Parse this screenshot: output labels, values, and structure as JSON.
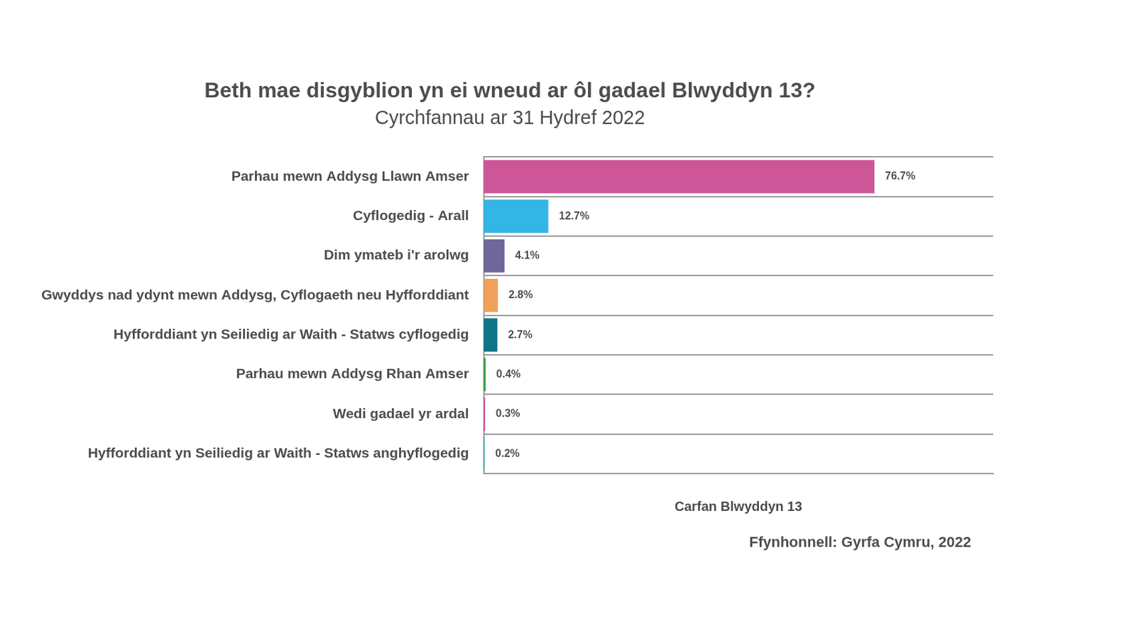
{
  "chart_data": {
    "type": "bar",
    "title": "Beth mae disgyblion yn ei wneud ar ôl gadael Blwyddyn 13?",
    "subtitle": "Cyrchfannau ar 31 Hydref 2022",
    "x_label": "Carfan Blwyddyn 13",
    "source": "Ffynhonnell: Gyrfa Cymru, 2022",
    "orientation": "horizontal",
    "categories": [
      "Parhau mewn Addysg Llawn Amser",
      "Cyflogedig - Arall",
      "Dim ymateb i'r arolwg",
      "Gwyddys nad ydynt mewn Addysg, Cyflogaeth neu Hyfforddiant",
      "Hyfforddiant yn Seiliedig ar Waith - Statws cyflogedig",
      "Parhau mewn Addysg Rhan Amser",
      "Wedi gadael yr ardal",
      "Hyfforddiant yn Seiliedig ar Waith - Statws anghyflogedig"
    ],
    "values": [
      76.7,
      12.7,
      4.1,
      2.8,
      2.7,
      0.4,
      0.3,
      0.2
    ],
    "value_labels": [
      "76.7%",
      "12.7%",
      "4.1%",
      "2.8%",
      "2.7%",
      "0.4%",
      "0.3%",
      "0.2%"
    ],
    "colors": [
      "#cd5698",
      "#33b5e5",
      "#716698",
      "#f0a058",
      "#0e7589",
      "#2e9b3e",
      "#cd5698",
      "#30a3ad"
    ],
    "xlim": [
      0,
      100
    ],
    "data_labels": true,
    "tick_labels": "y",
    "grid": true
  }
}
